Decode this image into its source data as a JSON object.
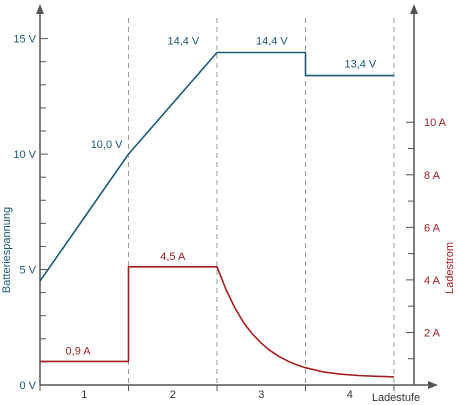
{
  "chart_data": {
    "type": "line",
    "title": "",
    "xlabel": "Ladestufe",
    "ylabel_left": "Batteriespannung",
    "ylabel_right": "Ladestrom",
    "stages": [
      "1",
      "2",
      "3",
      "4"
    ],
    "stage_boundaries": [
      0,
      1,
      2,
      3,
      4
    ],
    "x_range": [
      0,
      4.2
    ],
    "ylim_left": [
      0,
      16.5
    ],
    "ylim_right": [
      0,
      14.5
    ],
    "ticks_left": [
      {
        "value": 0,
        "label": "0 V"
      },
      {
        "value": 5,
        "label": "5 V"
      },
      {
        "value": 10,
        "label": "10 V"
      },
      {
        "value": 15,
        "label": "15 V"
      }
    ],
    "minor_ticks_left": [
      1,
      2,
      3,
      4,
      6,
      7,
      8,
      9,
      11,
      12,
      13,
      14
    ],
    "ticks_right": [
      {
        "value": 2,
        "label": "2 A"
      },
      {
        "value": 4,
        "label": "4 A"
      },
      {
        "value": 6,
        "label": "6 A"
      },
      {
        "value": 8,
        "label": "8 A"
      },
      {
        "value": 10,
        "label": "10 A"
      }
    ],
    "minor_ticks_right": [
      1,
      3,
      5,
      7,
      9
    ],
    "grid": "vertical-dashed-at-stage-boundaries",
    "colors": {
      "voltage": "#1b5a7a",
      "current": "#a41e22",
      "axis": "#555555",
      "grid": "#9a9a9a"
    },
    "series": [
      {
        "name": "Batteriespannung",
        "axis": "left",
        "points": [
          [
            0,
            4.5
          ],
          [
            1,
            10.0
          ],
          [
            2,
            14.4
          ],
          [
            3,
            14.4
          ],
          [
            3,
            13.4
          ],
          [
            4,
            13.4
          ]
        ]
      },
      {
        "name": "Ladestrom",
        "axis": "right",
        "points": [
          [
            0,
            0.9
          ],
          [
            1,
            0.9
          ],
          [
            1,
            4.5
          ],
          [
            2,
            4.5
          ],
          [
            2.1,
            3.65
          ],
          [
            2.2,
            2.95
          ],
          [
            2.3,
            2.38
          ],
          [
            2.4,
            1.94
          ],
          [
            2.5,
            1.59
          ],
          [
            2.6,
            1.31
          ],
          [
            2.7,
            1.09
          ],
          [
            2.8,
            0.91
          ],
          [
            2.9,
            0.77
          ],
          [
            3.0,
            0.66
          ],
          [
            3.2,
            0.5
          ],
          [
            3.4,
            0.41
          ],
          [
            3.6,
            0.36
          ],
          [
            3.8,
            0.33
          ],
          [
            4.0,
            0.31
          ]
        ]
      }
    ],
    "annotations": [
      {
        "series": 0,
        "x": 1,
        "y": 10.0,
        "label": "10,0 V",
        "anchor": "end",
        "dx": -6,
        "dy": -6
      },
      {
        "series": 0,
        "x": 1.62,
        "y": 14.4,
        "label": "14,4 V",
        "anchor": "middle",
        "dx": 0,
        "dy": -8
      },
      {
        "series": 0,
        "x": 2.62,
        "y": 14.4,
        "label": "14,4 V",
        "anchor": "middle",
        "dx": 0,
        "dy": -8
      },
      {
        "series": 0,
        "x": 3.62,
        "y": 13.4,
        "label": "13,4 V",
        "anchor": "middle",
        "dx": 0,
        "dy": -8
      },
      {
        "series": 1,
        "x": 0.43,
        "y": 0.9,
        "label": "0,9 A",
        "anchor": "middle",
        "dx": 0,
        "dy": -7
      },
      {
        "series": 1,
        "x": 1.5,
        "y": 4.5,
        "label": "4,5 A",
        "anchor": "middle",
        "dx": 0,
        "dy": -7
      }
    ]
  }
}
